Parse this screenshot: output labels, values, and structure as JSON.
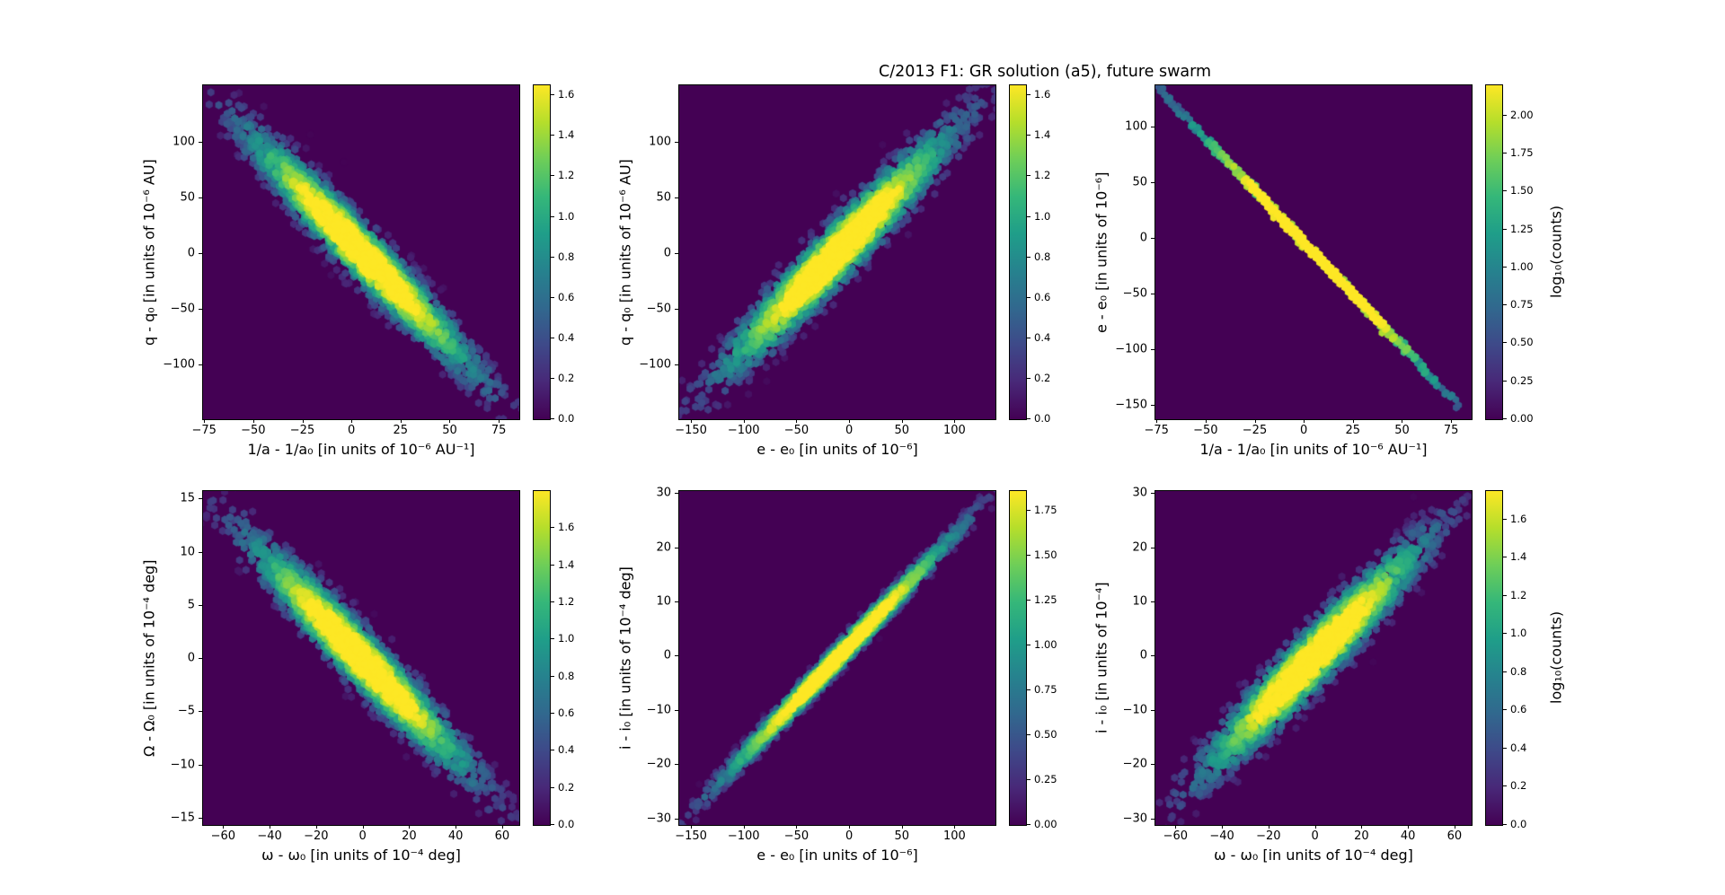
{
  "figure": {
    "title": "C/2013 F1: GR solution (a5), future swarm",
    "background": "#ffffff",
    "text_color": "#000000"
  },
  "palette": {
    "name": "viridis",
    "plot_bg": "#440154",
    "stops": [
      "#440154",
      "#482878",
      "#3e4989",
      "#31688e",
      "#26828e",
      "#1f9e89",
      "#35b779",
      "#6ece58",
      "#b5de2b",
      "#fde725"
    ]
  },
  "chart_data": [
    {
      "type": "hexbin",
      "position": "top-left",
      "xlabel": "1/a - 1/a₀ [in units of 10⁻⁶ AU⁻¹]",
      "ylabel": "q - q₀ [in units of 10⁻⁶ AU]",
      "x_axis": {
        "min": -76,
        "max": 85,
        "ticks": [
          -75,
          -50,
          -25,
          0,
          25,
          50,
          75
        ]
      },
      "y_axis": {
        "min": -148,
        "max": 152,
        "ticks": [
          100,
          50,
          0,
          -50,
          -100
        ]
      },
      "correlation": "negative",
      "distribution": {
        "slope": -1,
        "sigma_along": 0.26,
        "sigma_across": 0.033,
        "mode": "radial",
        "n": 2600,
        "seed": 7,
        "dot_radius": 4.6
      },
      "colorbar": {
        "ticks": [
          "1.6",
          "1.4",
          "1.2",
          "1.0",
          "0.8",
          "0.6",
          "0.4",
          "0.2",
          "0.0"
        ],
        "vmax": 1.65,
        "label": ""
      }
    },
    {
      "type": "hexbin",
      "position": "top-middle",
      "xlabel": "e - e₀ [in units of 10⁻⁶]",
      "ylabel": "q - q₀ [in units of 10⁻⁶ AU]",
      "x_axis": {
        "min": -162,
        "max": 138,
        "ticks": [
          -150,
          -100,
          -50,
          0,
          50,
          100
        ]
      },
      "y_axis": {
        "min": -148,
        "max": 152,
        "ticks": [
          100,
          50,
          0,
          -50,
          -100
        ]
      },
      "correlation": "positive",
      "distribution": {
        "slope": 1,
        "sigma_along": 0.26,
        "sigma_across": 0.036,
        "mode": "radial",
        "n": 2600,
        "seed": 13,
        "dot_radius": 4.6
      },
      "colorbar": {
        "ticks": [
          "1.6",
          "1.4",
          "1.2",
          "1.0",
          "0.8",
          "0.6",
          "0.4",
          "0.2",
          "0.0"
        ],
        "vmax": 1.65,
        "label": ""
      }
    },
    {
      "type": "hexbin",
      "position": "top-right",
      "xlabel": "1/a - 1/a₀ [in units of 10⁻⁶ AU⁻¹]",
      "ylabel": "e - e₀ [in units of 10⁻⁶]",
      "x_axis": {
        "min": -76,
        "max": 85,
        "ticks": [
          -75,
          -50,
          -25,
          0,
          25,
          50,
          75
        ]
      },
      "y_axis": {
        "min": -162,
        "max": 138,
        "ticks": [
          100,
          50,
          0,
          -50,
          -100,
          -150
        ]
      },
      "correlation": "negative",
      "distribution": {
        "slope": -1,
        "sigma_along": 0.3,
        "sigma_across": 0.0045,
        "mode": "along",
        "n": 950,
        "seed": 21,
        "dot_radius": 4.4
      },
      "colorbar": {
        "ticks": [
          "2.00",
          "1.75",
          "1.50",
          "1.25",
          "1.00",
          "0.75",
          "0.50",
          "0.25",
          "0.00"
        ],
        "vmax": 2.2,
        "label": "log₁₀(counts)"
      }
    },
    {
      "type": "hexbin",
      "position": "bottom-left",
      "xlabel": "ω - ω₀ [in units of 10⁻⁴ deg]",
      "ylabel": "Ω - Ω₀ [in units of 10⁻⁴ deg]",
      "x_axis": {
        "min": -69,
        "max": 67,
        "ticks": [
          -60,
          -40,
          -20,
          0,
          20,
          40,
          60
        ]
      },
      "y_axis": {
        "min": -15.6,
        "max": 15.8,
        "ticks": [
          15,
          10,
          5,
          0,
          -5,
          -10,
          -15
        ]
      },
      "correlation": "negative",
      "distribution": {
        "slope": -1,
        "sigma_along": 0.25,
        "sigma_across": 0.034,
        "mode": "radial",
        "n": 2600,
        "seed": 31,
        "dot_radius": 4.6
      },
      "colorbar": {
        "ticks": [
          "1.6",
          "1.4",
          "1.2",
          "1.0",
          "0.8",
          "0.6",
          "0.4",
          "0.2",
          "0.0"
        ],
        "vmax": 1.8,
        "label": ""
      }
    },
    {
      "type": "hexbin",
      "position": "bottom-middle",
      "xlabel": "e - e₀ [in units of 10⁻⁶]",
      "ylabel": "i - i₀ [in units of 10⁻⁴ deg]",
      "x_axis": {
        "min": -162,
        "max": 138,
        "ticks": [
          -150,
          -100,
          -50,
          0,
          50,
          100
        ]
      },
      "y_axis": {
        "min": -31,
        "max": 30.5,
        "ticks": [
          30,
          20,
          10,
          0,
          -10,
          -20,
          -30
        ]
      },
      "correlation": "positive",
      "distribution": {
        "slope": 1,
        "sigma_along": 0.27,
        "sigma_across": 0.014,
        "mode": "radial",
        "n": 2300,
        "seed": 41,
        "dot_radius": 4.4
      },
      "colorbar": {
        "ticks": [
          "1.75",
          "1.50",
          "1.25",
          "1.00",
          "0.75",
          "0.50",
          "0.25",
          "0.00"
        ],
        "vmax": 1.86,
        "label": ""
      }
    },
    {
      "type": "hexbin",
      "position": "bottom-right",
      "xlabel": "ω - ω₀ [in units of 10⁻⁴ deg]",
      "ylabel": "i - i₀ [in units of 10⁻⁴]",
      "x_axis": {
        "min": -69,
        "max": 67,
        "ticks": [
          -60,
          -40,
          -20,
          0,
          20,
          40,
          60
        ]
      },
      "y_axis": {
        "min": -31,
        "max": 30.5,
        "ticks": [
          30,
          20,
          10,
          0,
          -10,
          -20,
          -30
        ]
      },
      "correlation": "positive",
      "distribution": {
        "slope": 1,
        "sigma_along": 0.25,
        "sigma_across": 0.036,
        "mode": "radial",
        "n": 2600,
        "seed": 51,
        "dot_radius": 4.6
      },
      "colorbar": {
        "ticks": [
          "1.6",
          "1.4",
          "1.2",
          "1.0",
          "0.8",
          "0.6",
          "0.4",
          "0.2",
          "0.0"
        ],
        "vmax": 1.75,
        "label": "log₁₀(counts)"
      }
    }
  ]
}
